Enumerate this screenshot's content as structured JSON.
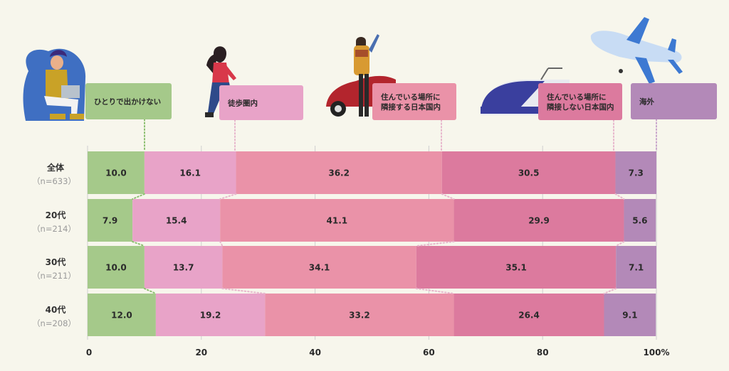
{
  "chart_data": {
    "type": "bar",
    "orientation": "horizontal-stacked-100",
    "categories": [
      {
        "label": "全体",
        "n": "（n=633）"
      },
      {
        "label": "20代",
        "n": "（n=214）"
      },
      {
        "label": "30代",
        "n": "（n=211）"
      },
      {
        "label": "40代",
        "n": "（n=208）"
      }
    ],
    "series": [
      {
        "name": "ひとりで出かけない",
        "lines": [
          "ひとりで出かけない"
        ],
        "color": "#a5c98a",
        "values": [
          10.0,
          7.9,
          10.0,
          12.0
        ],
        "labels": [
          "10.0",
          "7.9",
          "10.0",
          "12.0"
        ]
      },
      {
        "name": "徒歩圏内",
        "lines": [
          "徒歩圏内"
        ],
        "color": "#e8a3c8",
        "values": [
          16.1,
          15.4,
          13.7,
          19.2
        ],
        "labels": [
          "16.1",
          "15.4",
          "13.7",
          "19.2"
        ]
      },
      {
        "name": "住んでいる場所に隣接する日本国内",
        "lines": [
          "住んでいる場所に",
          "隣接する日本国内"
        ],
        "color": "#ea92a8",
        "values": [
          36.2,
          41.1,
          34.1,
          33.2
        ],
        "labels": [
          "36.2",
          "41.1",
          "34.1",
          "33.2"
        ]
      },
      {
        "name": "住んでいる場所に隣接しない日本国内",
        "lines": [
          "住んでいる場所に",
          "隣接しない日本国内"
        ],
        "color": "#dc7a9e",
        "values": [
          30.5,
          29.9,
          35.1,
          26.4
        ],
        "labels": [
          "30.5",
          "29.9",
          "35.1",
          "26.4"
        ]
      },
      {
        "name": "海外",
        "lines": [
          "海外"
        ],
        "color": "#b389b8",
        "values": [
          7.3,
          5.6,
          7.1,
          9.1
        ],
        "labels": [
          "7.3",
          "5.6",
          "7.1",
          "9.1"
        ]
      }
    ],
    "x_ticks": [
      "0",
      "20",
      "40",
      "60",
      "80",
      "100%"
    ],
    "xlim": [
      0,
      100
    ],
    "connector_lines": "dotted",
    "grid": true
  },
  "illustrations": [
    {
      "name": "person-with-laptop-icon"
    },
    {
      "name": "walking-woman-icon"
    },
    {
      "name": "traveler-with-car-icon"
    },
    {
      "name": "bullet-train-icon"
    },
    {
      "name": "airplane-icon"
    }
  ]
}
